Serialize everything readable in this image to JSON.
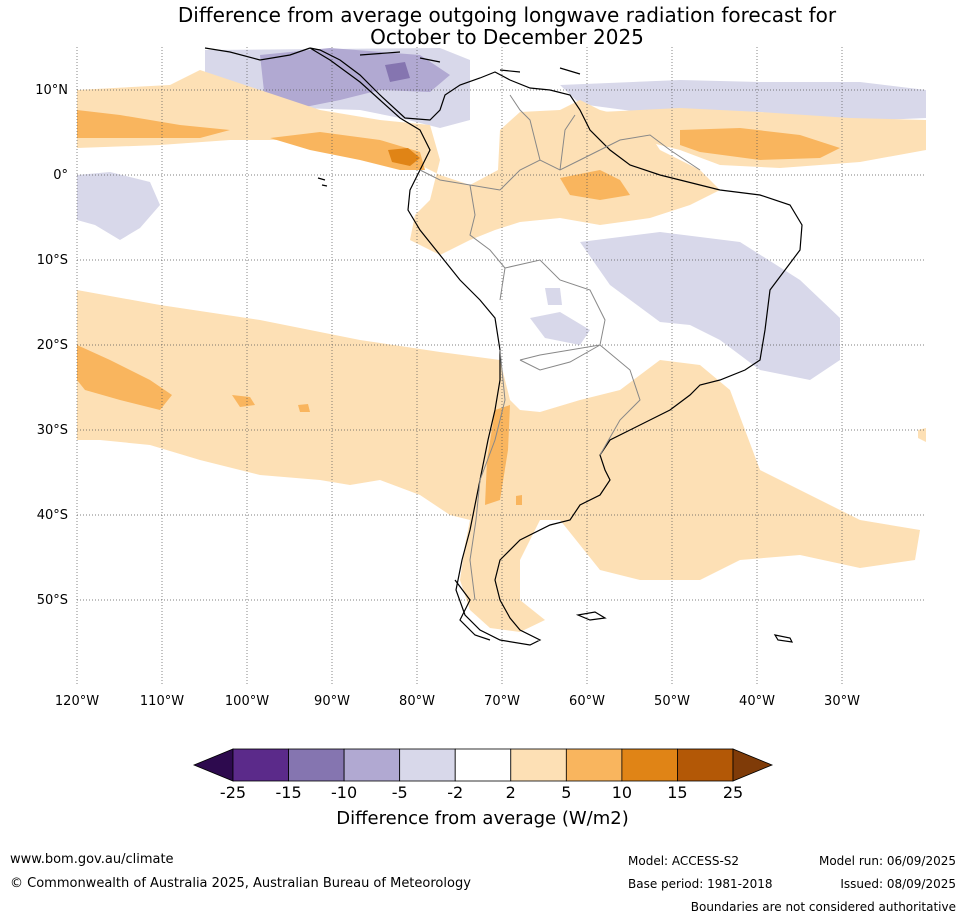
{
  "title": {
    "line1": "Difference from average outgoing longwave radiation forecast for",
    "line2": "October to December 2025"
  },
  "map": {
    "lat_labels": [
      "10°N",
      "0°",
      "10°S",
      "20°S",
      "30°S",
      "40°S",
      "50°S"
    ],
    "lon_labels": [
      "120°W",
      "110°W",
      "100°W",
      "90°W",
      "80°W",
      "70°W",
      "60°W",
      "50°W",
      "40°W",
      "30°W"
    ],
    "colors": {
      "ocean": "#ffffff",
      "land_line": "#000000",
      "border_line": "#888888",
      "grid": "#555555"
    }
  },
  "colorbar": {
    "ticks": [
      "-25",
      "-15",
      "-10",
      "-5",
      "-2",
      "2",
      "5",
      "10",
      "15",
      "25"
    ],
    "label": "Difference from average (W/m2)",
    "colors": [
      "#2d0a4e",
      "#5b2a8a",
      "#8575b0",
      "#b1a9d2",
      "#d8d8ea",
      "#ffffff",
      "#fde0b5",
      "#f9b55e",
      "#e08416",
      "#b35806",
      "#7f3b08"
    ]
  },
  "footer": {
    "url": "www.bom.gov.au/climate",
    "copyright": "© Commonwealth of Australia 2025, Australian Bureau of Meteorology",
    "model": "Model: ACCESS-S2",
    "base_period": "Base period: 1981-2018",
    "model_run": "Model run: 06/09/2025",
    "issued": "Issued: 08/09/2025",
    "disclaimer": "Boundaries are not considered authoritative"
  }
}
